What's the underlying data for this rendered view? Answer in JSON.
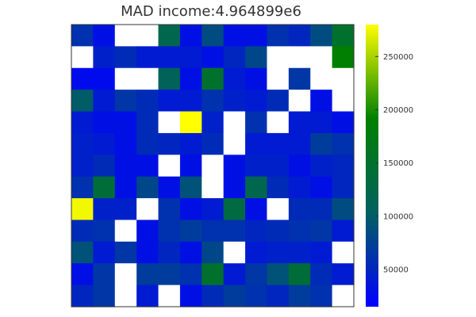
{
  "chart_data": {
    "type": "heatmap",
    "title": "MAD income:4.964899e6",
    "xlabel": "",
    "ylabel": "",
    "rows": 13,
    "cols": 13,
    "values": [
      [
        60000,
        30000,
        null,
        null,
        120000,
        30000,
        85000,
        30000,
        30000,
        60000,
        50000,
        85000,
        150000
      ],
      [
        null,
        45000,
        55000,
        40000,
        40000,
        40000,
        30000,
        50000,
        80000,
        null,
        null,
        null,
        190000
      ],
      [
        25000,
        25000,
        null,
        null,
        110000,
        30000,
        150000,
        40000,
        30000,
        null,
        65000,
        null,
        null
      ],
      [
        100000,
        40000,
        65000,
        55000,
        40000,
        40000,
        60000,
        45000,
        40000,
        55000,
        null,
        30000,
        null
      ],
      [
        40000,
        30000,
        30000,
        55000,
        null,
        280000,
        45000,
        null,
        60000,
        null,
        40000,
        40000,
        30000
      ],
      [
        45000,
        40000,
        30000,
        55000,
        50000,
        40000,
        55000,
        null,
        40000,
        40000,
        40000,
        70000,
        60000
      ],
      [
        45000,
        55000,
        30000,
        30000,
        null,
        30000,
        null,
        30000,
        45000,
        45000,
        30000,
        45000,
        50000
      ],
      [
        60000,
        140000,
        30000,
        80000,
        30000,
        90000,
        null,
        30000,
        120000,
        55000,
        40000,
        30000,
        50000
      ],
      [
        275000,
        45000,
        45000,
        null,
        60000,
        30000,
        40000,
        130000,
        30000,
        null,
        55000,
        55000,
        85000
      ],
      [
        55000,
        60000,
        null,
        30000,
        60000,
        70000,
        60000,
        60000,
        50000,
        55000,
        60000,
        65000,
        40000
      ],
      [
        90000,
        40000,
        65000,
        30000,
        50000,
        30000,
        80000,
        null,
        40000,
        45000,
        45000,
        40000,
        null
      ],
      [
        30000,
        65000,
        null,
        70000,
        70000,
        60000,
        150000,
        40000,
        65000,
        90000,
        140000,
        55000,
        40000
      ],
      [
        50000,
        65000,
        null,
        40000,
        null,
        30000,
        55000,
        70000,
        60000,
        50000,
        70000,
        60000,
        null
      ]
    ],
    "colorbar": {
      "min": 15000,
      "max": 280000,
      "ticks": [
        50000,
        100000,
        150000,
        200000,
        250000
      ],
      "tick_labels": [
        "50000",
        "100000",
        "150000",
        "200000",
        "250000"
      ],
      "colors": [
        "#0000ff",
        "#006060",
        "#008000",
        "#ffff00"
      ]
    },
    "missing_color": "#ffffff",
    "grid": false,
    "legend": "colorbar-right"
  }
}
